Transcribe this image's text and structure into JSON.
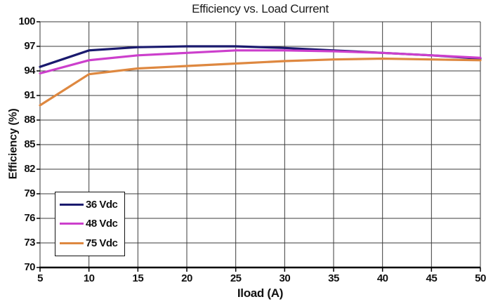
{
  "chart_data": {
    "type": "line",
    "title": "Efficiency vs. Load Current",
    "xlabel": "Iload (A)",
    "ylabel": "Efficiency (%)",
    "x": [
      5,
      10,
      15,
      20,
      25,
      30,
      35,
      40,
      45,
      50
    ],
    "x_ticks": [
      5,
      10,
      15,
      20,
      25,
      30,
      35,
      40,
      45,
      50
    ],
    "y_ticks": [
      70,
      73,
      76,
      79,
      82,
      85,
      88,
      91,
      94,
      97,
      100
    ],
    "xlim": [
      5,
      50
    ],
    "ylim": [
      70,
      100
    ],
    "grid": true,
    "legend_position": "lower-left",
    "grid_color": "#3b3b3b",
    "axis_color": "#000000",
    "background_color": "#ffffff",
    "series": [
      {
        "name": "36 Vdc",
        "color": "#1A1A6E",
        "values": [
          94.5,
          96.5,
          96.9,
          97.0,
          97.0,
          96.8,
          96.5,
          96.2,
          95.9,
          95.5
        ]
      },
      {
        "name": "48 Vdc",
        "color": "#CC3FCC",
        "values": [
          93.7,
          95.3,
          95.9,
          96.2,
          96.5,
          96.5,
          96.4,
          96.2,
          95.9,
          95.6
        ]
      },
      {
        "name": "75 Vdc",
        "color": "#DE8840",
        "values": [
          89.8,
          93.6,
          94.3,
          94.6,
          94.9,
          95.2,
          95.4,
          95.5,
          95.4,
          95.3
        ]
      }
    ]
  }
}
